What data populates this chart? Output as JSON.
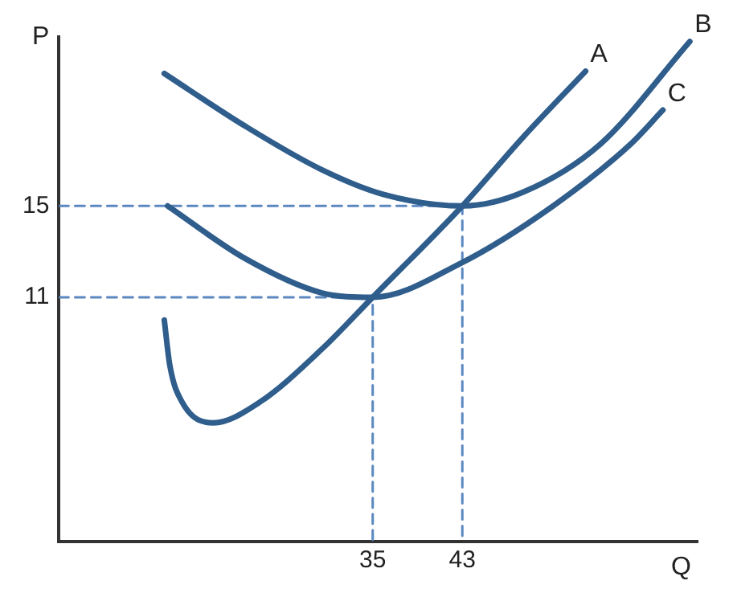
{
  "chart_data": {
    "type": "line",
    "xlabel": "Q",
    "ylabel": "P",
    "xlim": [
      7,
      64
    ],
    "ylim": [
      0.3,
      22.4
    ],
    "xticks": [
      35,
      43
    ],
    "yticks": [
      11,
      15
    ],
    "grid": false,
    "legend": false,
    "marker": "none",
    "series": [
      {
        "name": "A",
        "color": "#2f5d8c",
        "line_style": "solid",
        "x": [
          16.4,
          16.9,
          18,
          20.8,
          24.9,
          30.4,
          35,
          43,
          48.4,
          54
        ],
        "values": [
          10.0,
          8.0,
          6.4,
          5.5,
          6.4,
          8.7,
          11,
          15,
          18.0,
          20.9
        ]
      },
      {
        "name": "B",
        "color": "#2f5d8c",
        "line_style": "solid",
        "x": [
          16.4,
          23.6,
          30.4,
          36,
          43,
          48.4,
          55.3,
          63.3
        ],
        "values": [
          20.8,
          18.5,
          16.6,
          15.5,
          15,
          15.6,
          17.7,
          22.2
        ]
      },
      {
        "name": "C",
        "color": "#2f5d8c",
        "line_style": "solid",
        "x": [
          16.7,
          23.6,
          30.4,
          35,
          42.9,
          51.1,
          58,
          60.9
        ],
        "values": [
          15,
          12.7,
          11.2,
          11,
          12.5,
          15.0,
          17.7,
          19.2
        ]
      },
      {
        "color": "#5b88c0",
        "line_style": "dashed",
        "x": [
          7,
          43,
          43
        ],
        "values": [
          15,
          15,
          0.3
        ]
      },
      {
        "color": "#5b88c0",
        "line_style": "dashed",
        "x": [
          7,
          35,
          35
        ],
        "values": [
          11,
          11,
          0.3
        ]
      }
    ]
  }
}
